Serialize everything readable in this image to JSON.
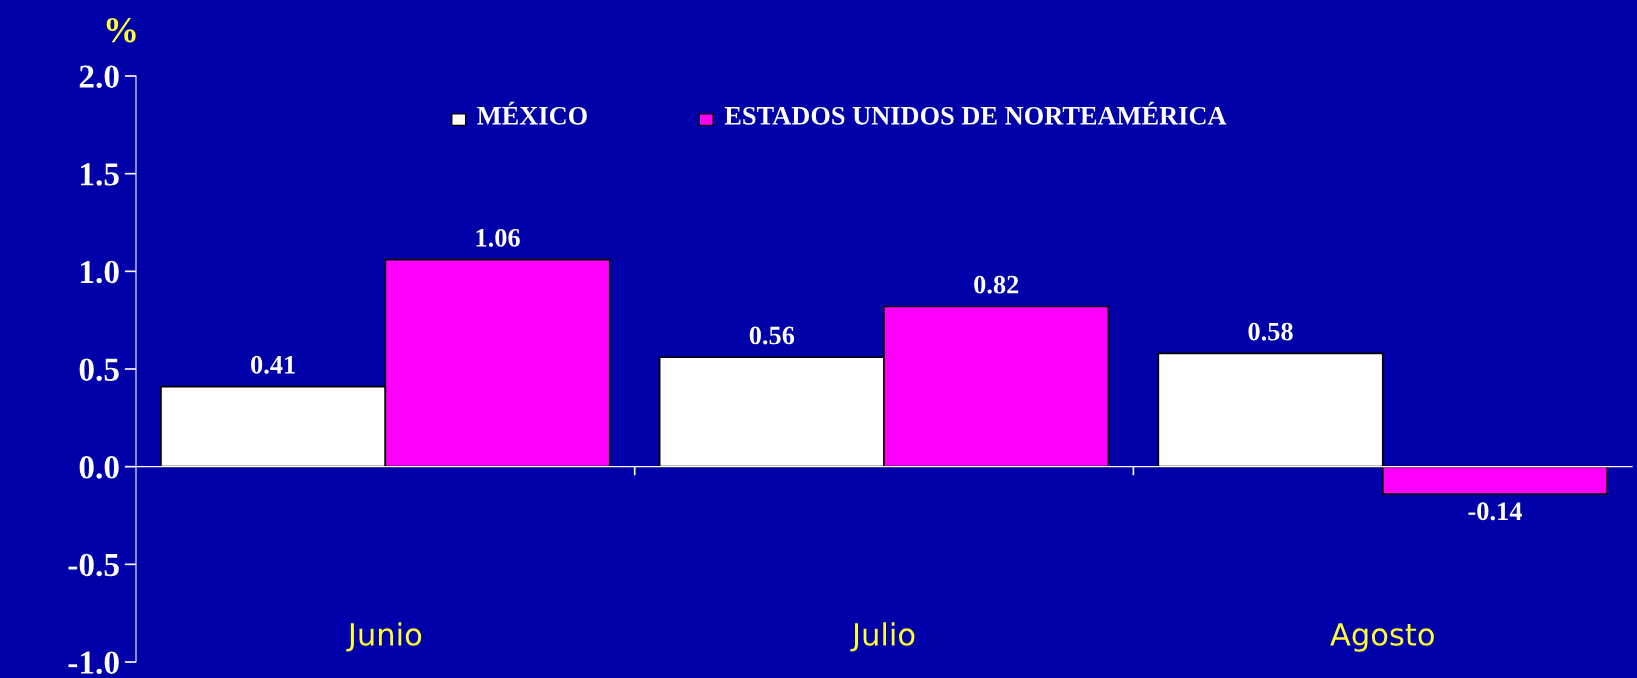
{
  "chart_data": {
    "type": "bar",
    "ylabel": "%",
    "categories": [
      "Junio",
      "Julio",
      "Agosto"
    ],
    "series": [
      {
        "name": "MÉXICO",
        "color": "#ffffff",
        "values": [
          0.41,
          0.56,
          0.58
        ]
      },
      {
        "name": "ESTADOS UNIDOS DE NORTEAMÉRICA",
        "color": "#ff00ff",
        "values": [
          1.06,
          0.82,
          -0.14
        ]
      }
    ],
    "ylim": [
      -1.0,
      2.0
    ],
    "yticks": [
      {
        "value": -1,
        "label": "-1.0"
      },
      {
        "value": -0.5,
        "label": "-0.5"
      },
      {
        "value": 0,
        "label": "0.0"
      },
      {
        "value": 0.5,
        "label": "0.5"
      },
      {
        "value": 1,
        "label": "1.0"
      },
      {
        "value": 1.5,
        "label": "1.5"
      },
      {
        "value": 2,
        "label": "2.0"
      }
    ],
    "data_labels": true,
    "legend": "top"
  }
}
